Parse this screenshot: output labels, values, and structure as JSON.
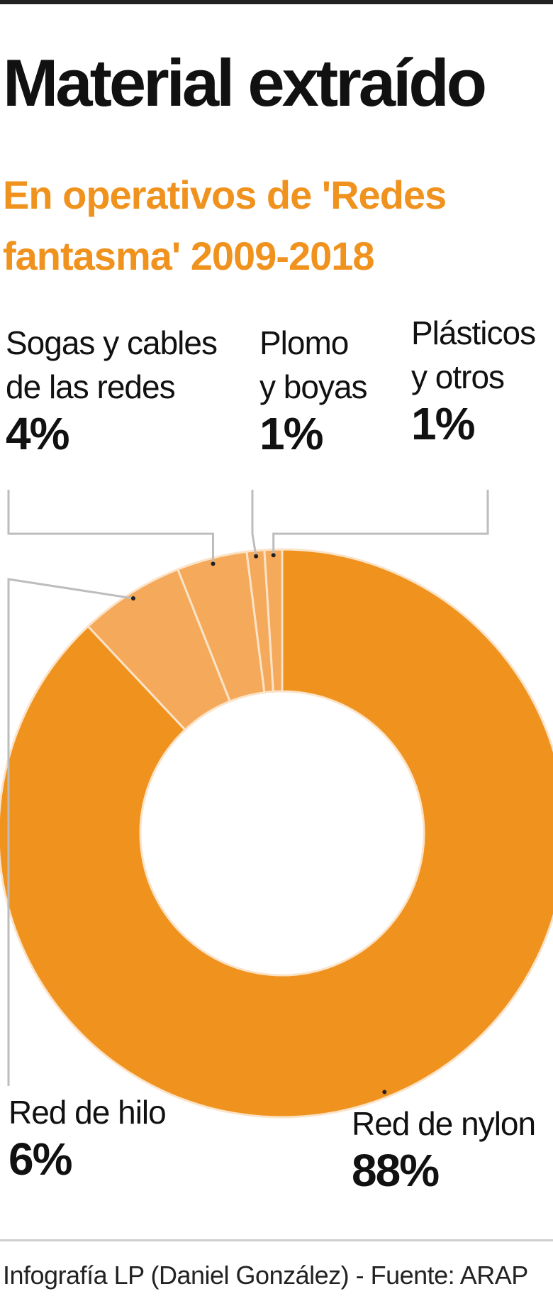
{
  "title": "Material extraído",
  "subtitle": "En operativos de 'Redes fantasma'  2009-2018",
  "credit": "Infografía LP (Daniel González) - Fuente: ARAP",
  "colors": {
    "accent": "#f0921e",
    "slice_main": "#f0921e",
    "slice_light": "#f5a95a",
    "separator": "#fbe3c8",
    "leader": "#bdbdbd"
  },
  "labels": {
    "sogas": {
      "line1": "Sogas y cables",
      "line2": "de las redes",
      "pct": "4%"
    },
    "plomo": {
      "line1": "Plomo",
      "line2": "y boyas",
      "pct": "1%"
    },
    "plasticos": {
      "line1": "Plásticos",
      "line2": "y otros",
      "pct": "1%"
    },
    "hilo": {
      "line1": "Red de hilo",
      "pct": "6%"
    },
    "nylon": {
      "line1": "Red de nylon",
      "pct": "88%"
    }
  },
  "chart_data": {
    "type": "pie",
    "donut": true,
    "title": "Material extraído",
    "subtitle": "En operativos de 'Redes fantasma'  2009-2018",
    "start": "top",
    "direction": "clockwise",
    "categories": [
      "Red de nylon",
      "Red de hilo",
      "Sogas y cables de las redes",
      "Plomo y boyas",
      "Plásticos y otros"
    ],
    "values": [
      88,
      6,
      4,
      1,
      1
    ],
    "unit": "%"
  }
}
